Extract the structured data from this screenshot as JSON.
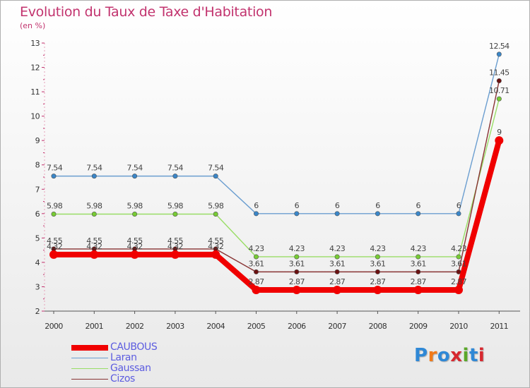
{
  "title": "Evolution du Taux de Taxe d'Habitation",
  "subtitle": "(en %)",
  "logo": {
    "text": "Proxiti",
    "colors": [
      "#2f88d6",
      "#f07a1a",
      "#2f88d6",
      "#d7282f",
      "#5aa829",
      "#2f88d6",
      "#d7282f"
    ]
  },
  "chart_data": {
    "type": "line",
    "title": "Evolution du Taux de Taxe d'Habitation",
    "ylabel": "(en %)",
    "xlabel": "",
    "categories": [
      "2000",
      "2001",
      "2002",
      "2003",
      "2004",
      "2005",
      "2006",
      "2007",
      "2008",
      "2009",
      "2010",
      "2011"
    ],
    "ylim": [
      2,
      13
    ],
    "yticks": [
      2,
      3,
      4,
      5,
      6,
      7,
      8,
      9,
      10,
      11,
      12,
      13
    ],
    "legend_position": "bottom-left",
    "series": [
      {
        "name": "CAUBOUS",
        "color": "#f00000",
        "emphasis": true,
        "values": [
          4.32,
          4.32,
          4.32,
          4.32,
          4.32,
          2.87,
          2.87,
          2.87,
          2.87,
          2.87,
          2.87,
          9
        ],
        "labels": [
          "4.32",
          "4.32",
          "4.32",
          "4.32",
          "4.32",
          "2.87",
          "2.87",
          "2.87",
          "2.87",
          "2.87",
          "2.87",
          "9"
        ]
      },
      {
        "name": "Laran",
        "color": "#6b9ed0",
        "marker": "#3a86c8",
        "values": [
          7.54,
          7.54,
          7.54,
          7.54,
          7.54,
          6,
          6,
          6,
          6,
          6,
          6,
          12.54
        ],
        "labels": [
          "7.54",
          "7.54",
          "7.54",
          "7.54",
          "7.54",
          "6",
          "6",
          "6",
          "6",
          "6",
          "6",
          "12.54"
        ]
      },
      {
        "name": "Gaussan",
        "color": "#99dd66",
        "marker": "#77cc33",
        "values": [
          5.98,
          5.98,
          5.98,
          5.98,
          5.98,
          4.23,
          4.23,
          4.23,
          4.23,
          4.23,
          4.23,
          10.71
        ],
        "labels": [
          "5.98",
          "5.98",
          "5.98",
          "5.98",
          "5.98",
          "4.23",
          "4.23",
          "4.23",
          "4.23",
          "4.23",
          "4.23",
          "10.71"
        ]
      },
      {
        "name": "Cizos",
        "color": "#883333",
        "marker": "#6b1111",
        "values": [
          4.55,
          4.55,
          4.55,
          4.55,
          4.55,
          3.61,
          3.61,
          3.61,
          3.61,
          3.61,
          3.61,
          11.45
        ],
        "labels": [
          "4.55",
          "4.55",
          "4.55",
          "4.55",
          "4.55",
          "3.61",
          "3.61",
          "3.61",
          "3.61",
          "3.61",
          "3.61",
          "11.45"
        ]
      }
    ]
  }
}
